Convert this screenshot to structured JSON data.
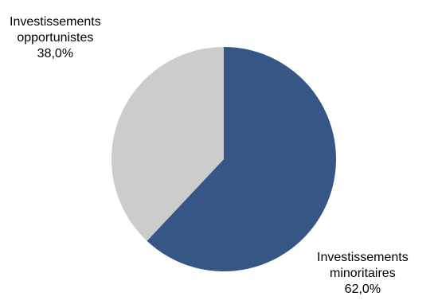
{
  "chart_data": {
    "type": "pie",
    "slices": [
      {
        "label_line1": "Investissements",
        "label_line2": "minoritaires",
        "value": 62.0,
        "value_label": "62,0%",
        "color": "#365785"
      },
      {
        "label_line1": "Investissements",
        "label_line2": "opportunistes",
        "value": 38.0,
        "value_label": "38,0%",
        "color": "#cccccc"
      }
    ],
    "legend": "none"
  }
}
